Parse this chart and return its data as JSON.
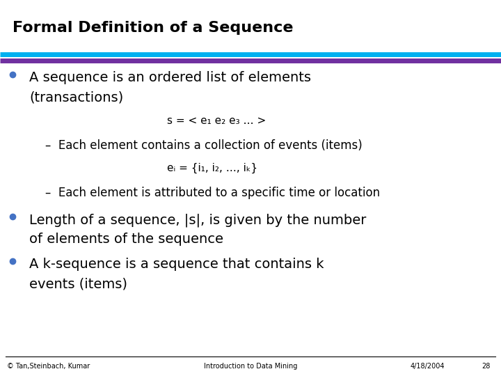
{
  "title": "Formal Definition of a Sequence",
  "title_color": "#000000",
  "title_bg": "#ffffff",
  "title_fontsize": 16,
  "title_fontweight": "bold",
  "line1_color": "#00b0f0",
  "line2_color": "#7030a0",
  "bg_color": "#ffffff",
  "bullet_color": "#4472c4",
  "footer_left": "© Tan,Steinbach, Kumar",
  "footer_center": "Introduction to Data Mining",
  "footer_right": "4/18/2004",
  "footer_page": "28",
  "bullet_fontsize": 14,
  "sub_fontsize": 12,
  "formula_fontsize": 11,
  "footer_fontsize": 7,
  "content": [
    {
      "type": "bullet",
      "text1": "A sequence is an ordered list of elements",
      "text2": "(transactions)"
    },
    {
      "type": "formula",
      "text": "s = < e₁ e₂ e₃ … >"
    },
    {
      "type": "sub_bullet",
      "text": "–  Each element contains a collection of events (items)"
    },
    {
      "type": "formula",
      "text": "eᵢ = {i₁, i₂, …, iₖ}"
    },
    {
      "type": "sub_bullet",
      "text": "–  Each element is attributed to a specific time or location"
    },
    {
      "type": "bullet",
      "text1": "Length of a sequence, |s|, is given by the number",
      "text2": "of elements of the sequence"
    },
    {
      "type": "bullet",
      "text1": "A k-sequence is a sequence that contains k",
      "text2": "events (items)"
    }
  ]
}
